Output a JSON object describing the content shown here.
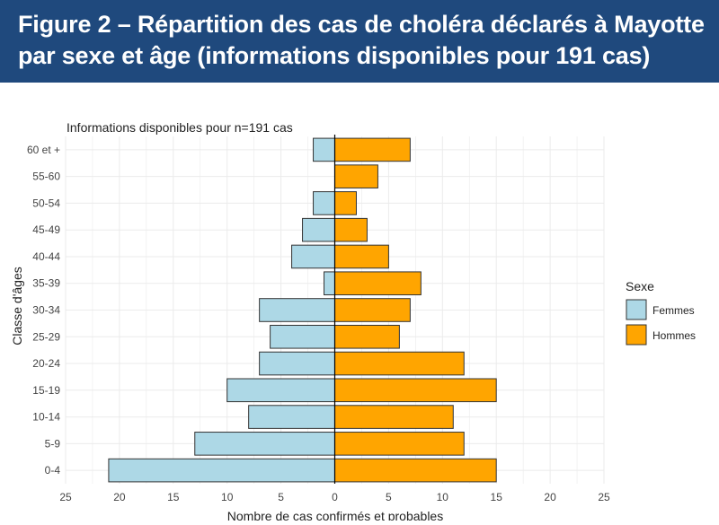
{
  "banner": {
    "title": "Figure 2 – Répartition des cas de choléra déclarés à Mayotte par sexe et âge (informations disponibles pour 191 cas)"
  },
  "chart_data": {
    "type": "bar",
    "orientation": "horizontal-pyramid",
    "subtitle": "Informations disponibles pour n=191 cas",
    "xlabel": "Nombre de cas confirmés et probables",
    "ylabel": "Classe d'âges",
    "categories": [
      "0-4",
      "5-9",
      "10-14",
      "15-19",
      "20-24",
      "25-29",
      "30-34",
      "35-39",
      "40-44",
      "45-49",
      "50-54",
      "55-60",
      "60 et +"
    ],
    "series": [
      {
        "name": "Femmes",
        "color": "#add8e6",
        "values": [
          21,
          13,
          8,
          10,
          7,
          6,
          7,
          1,
          4,
          3,
          2,
          0,
          2
        ]
      },
      {
        "name": "Hommes",
        "color": "#ffa500",
        "values": [
          15,
          12,
          11,
          15,
          12,
          6,
          7,
          8,
          5,
          3,
          2,
          4,
          7
        ]
      }
    ],
    "xlim": [
      -25,
      25
    ],
    "x_ticks": [
      -25,
      -20,
      -15,
      -10,
      -5,
      0,
      5,
      10,
      15,
      20,
      25
    ],
    "x_tick_labels": [
      "25",
      "20",
      "15",
      "10",
      "5",
      "0",
      "5",
      "10",
      "15",
      "20",
      "25"
    ],
    "legend": {
      "title": "Sexe",
      "position": "right"
    },
    "grid": true
  }
}
